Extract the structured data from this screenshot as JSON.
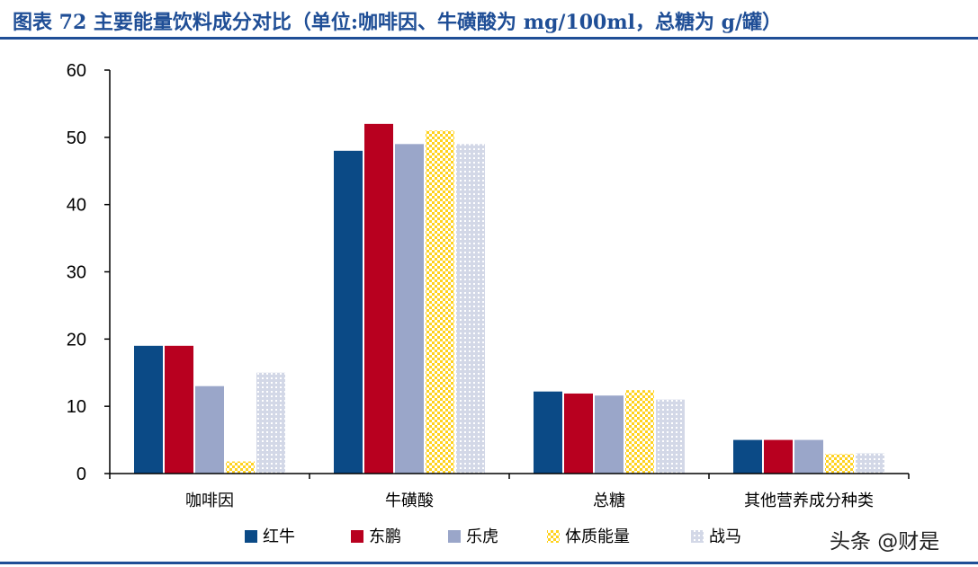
{
  "figure": {
    "title": "图表  72    主要能量饮料成分对比（单位:咖啡因、牛磺酸为 mg/100ml，总糖为 g/罐）",
    "watermark": "头条 @财是"
  },
  "colors": {
    "accent": "#1f4e96"
  },
  "chart_data": {
    "type": "bar",
    "title": "",
    "xlabel": "",
    "ylabel": "",
    "ylim": [
      0,
      60
    ],
    "yticks": [
      0,
      10,
      20,
      30,
      40,
      50,
      60
    ],
    "grid": false,
    "legend_position": "bottom",
    "categories": [
      "咖啡因",
      "牛磺酸",
      "总糖",
      "其他营养成分种类"
    ],
    "series": [
      {
        "name": "红牛",
        "values": [
          19,
          48,
          12.2,
          5
        ],
        "color": "#0b4a86",
        "pattern": "solid"
      },
      {
        "name": "东鹏",
        "values": [
          19,
          52,
          11.9,
          5
        ],
        "color": "#b8001f",
        "pattern": "solid"
      },
      {
        "name": "乐虎",
        "values": [
          13,
          49,
          11.6,
          5
        ],
        "color": "#9aa6c9",
        "pattern": "solid"
      },
      {
        "name": "体质能量",
        "values": [
          1.8,
          51,
          12.4,
          2.9
        ],
        "color": "#ffd21f",
        "pattern": "checker"
      },
      {
        "name": "战马",
        "values": [
          15,
          49,
          11,
          3
        ],
        "color": "#d3d8e7",
        "pattern": "dots"
      }
    ]
  }
}
